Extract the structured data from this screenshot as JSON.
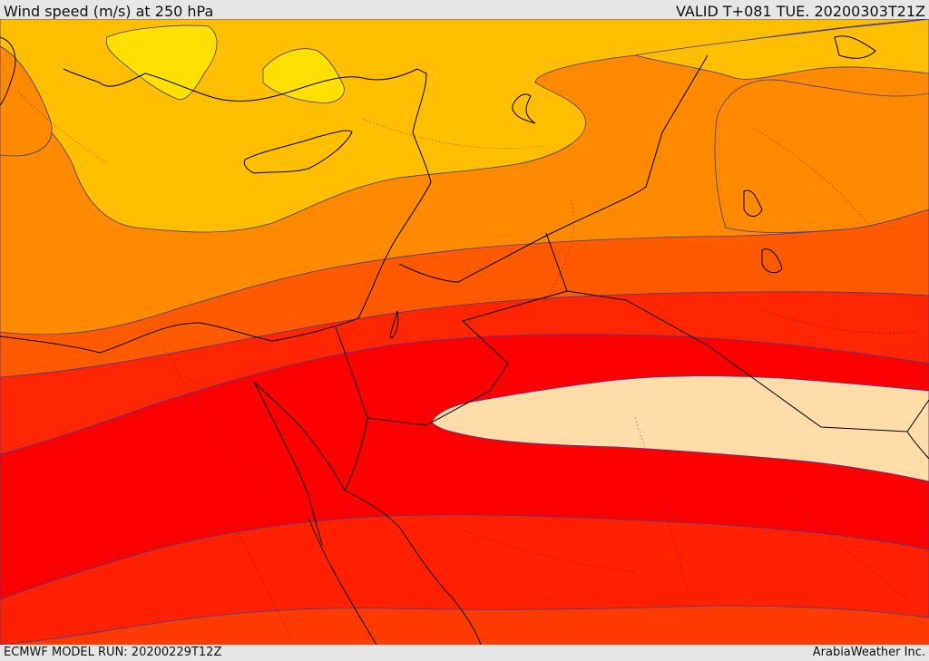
{
  "header": {
    "title": "Wind speed (m/s) at 250 hPa",
    "valid": "VALID T+081 TUE. 20200303T21Z"
  },
  "footer": {
    "model_run": "ECMWF MODEL RUN: 20200229T12Z",
    "credit": "ArabiaWeather Inc."
  },
  "legend_colors": {
    "yellow": "#ffe000",
    "light_orange": "#ffc000",
    "orange": "#ff8c00",
    "dark_orange": "#ff6000",
    "red_orange": "#ff3000",
    "red": "#ff0000",
    "jet_core": "#ffdca8"
  }
}
